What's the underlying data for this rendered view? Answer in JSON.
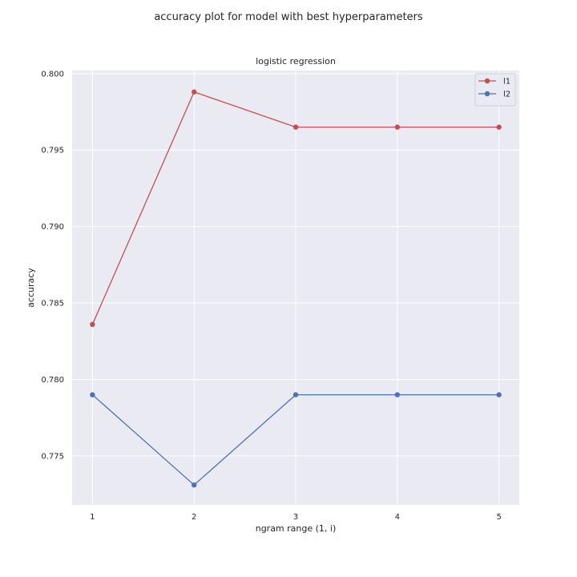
{
  "chart_data": {
    "type": "line",
    "suptitle": "accuracy plot for model with best hyperparameters",
    "title": "logistic regression",
    "xlabel": "ngram range (1, i)",
    "ylabel": "accuracy",
    "x": [
      1,
      2,
      3,
      4,
      5
    ],
    "xticks": [
      "1",
      "2",
      "3",
      "4",
      "5"
    ],
    "yticks": [
      "0.775",
      "0.780",
      "0.785",
      "0.790",
      "0.795",
      "0.800"
    ],
    "ytick_values": [
      0.775,
      0.78,
      0.785,
      0.79,
      0.795,
      0.8
    ],
    "xlim": [
      0.8,
      5.2
    ],
    "ylim": [
      0.7718,
      0.8002
    ],
    "grid": true,
    "legend_position": "top-right",
    "series": [
      {
        "name": "l1",
        "color": "#c44e52",
        "values": [
          0.7836,
          0.7988,
          0.7965,
          0.7965,
          0.7965
        ]
      },
      {
        "name": "l2",
        "color": "#4c72b0",
        "values": [
          0.779,
          0.7731,
          0.779,
          0.779,
          0.779
        ]
      }
    ]
  }
}
